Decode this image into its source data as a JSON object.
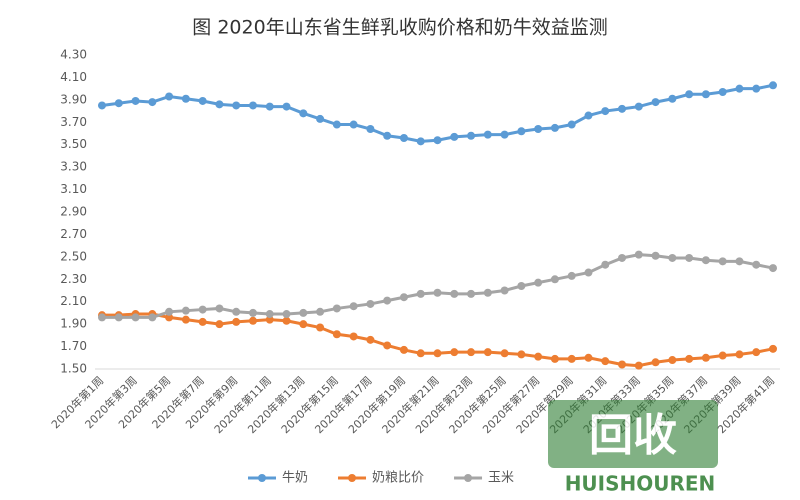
{
  "chart_data": {
    "type": "line",
    "title": "图  2020年山东省生鲜乳收购价格和奶牛效益监测",
    "categories": [
      "2020年第1周",
      null,
      "2020年第3周",
      null,
      "2020年第5周",
      null,
      "2020年第7周",
      null,
      "2020年第9周",
      null,
      "2020年第11周",
      null,
      "2020年第13周",
      null,
      "2020年第15周",
      null,
      "2020年第17周",
      null,
      "2020年第19周",
      null,
      "2020年第21周",
      null,
      "2020年第23周",
      null,
      "2020年第25周",
      null,
      "2020年第27周",
      null,
      "2020年第29周",
      null,
      "2020年第31周",
      null,
      "2020年第33周",
      null,
      "2020年第35周",
      null,
      "2020年第37周",
      null,
      "2020年第39周",
      null,
      "2020年第41周"
    ],
    "series": [
      {
        "name": "牛奶",
        "color": "#5b9bd5",
        "values": [
          3.85,
          3.87,
          3.89,
          3.88,
          3.93,
          3.91,
          3.89,
          3.86,
          3.85,
          3.85,
          3.84,
          3.84,
          3.78,
          3.73,
          3.68,
          3.68,
          3.64,
          3.58,
          3.56,
          3.53,
          3.54,
          3.57,
          3.58,
          3.59,
          3.59,
          3.62,
          3.64,
          3.65,
          3.68,
          3.76,
          3.8,
          3.82,
          3.84,
          3.88,
          3.91,
          3.95,
          3.95,
          3.97,
          4.0,
          4.0,
          4.03
        ]
      },
      {
        "name": "奶粮比价",
        "color": "#ed7d31",
        "values": [
          1.98,
          1.98,
          1.99,
          1.99,
          1.96,
          1.94,
          1.92,
          1.9,
          1.92,
          1.93,
          1.94,
          1.93,
          1.9,
          1.87,
          1.81,
          1.79,
          1.76,
          1.71,
          1.67,
          1.64,
          1.64,
          1.65,
          1.65,
          1.65,
          1.64,
          1.63,
          1.61,
          1.59,
          1.59,
          1.6,
          1.57,
          1.54,
          1.53,
          1.56,
          1.58,
          1.59,
          1.6,
          1.62,
          1.63,
          1.65,
          1.68
        ]
      },
      {
        "name": "玉米",
        "color": "#a5a5a5",
        "values": [
          1.96,
          1.96,
          1.96,
          1.96,
          2.01,
          2.02,
          2.03,
          2.04,
          2.01,
          2.0,
          1.99,
          1.99,
          2.0,
          2.01,
          2.04,
          2.06,
          2.08,
          2.11,
          2.14,
          2.17,
          2.18,
          2.17,
          2.17,
          2.18,
          2.2,
          2.24,
          2.27,
          2.3,
          2.33,
          2.36,
          2.43,
          2.49,
          2.52,
          2.51,
          2.49,
          2.49,
          2.47,
          2.46,
          2.46,
          2.43,
          2.4
        ]
      }
    ],
    "ylim": [
      1.5,
      4.3
    ],
    "yticks": [
      {
        "value": 1.5,
        "label": "1.50"
      },
      {
        "value": 1.7,
        "label": "1.70"
      },
      {
        "value": 1.9,
        "label": "1.90"
      },
      {
        "value": 2.1,
        "label": "2.10"
      },
      {
        "value": 2.3,
        "label": "2.30"
      },
      {
        "value": 2.5,
        "label": "2.50"
      },
      {
        "value": 2.7,
        "label": "2.70"
      },
      {
        "value": 2.9,
        "label": "2.90"
      },
      {
        "value": 3.1,
        "label": "3.10"
      },
      {
        "value": 3.3,
        "label": "3.30"
      },
      {
        "value": 3.5,
        "label": "3.50"
      },
      {
        "value": 3.7,
        "label": "3.70"
      },
      {
        "value": 3.9,
        "label": "3.90"
      },
      {
        "value": 4.1,
        "label": "4.10"
      },
      {
        "value": 4.3,
        "label": "4.30"
      }
    ],
    "grid": false,
    "legend": "bottom"
  },
  "watermark": {
    "icon": "回收",
    "text": "HUISHOUREN"
  }
}
